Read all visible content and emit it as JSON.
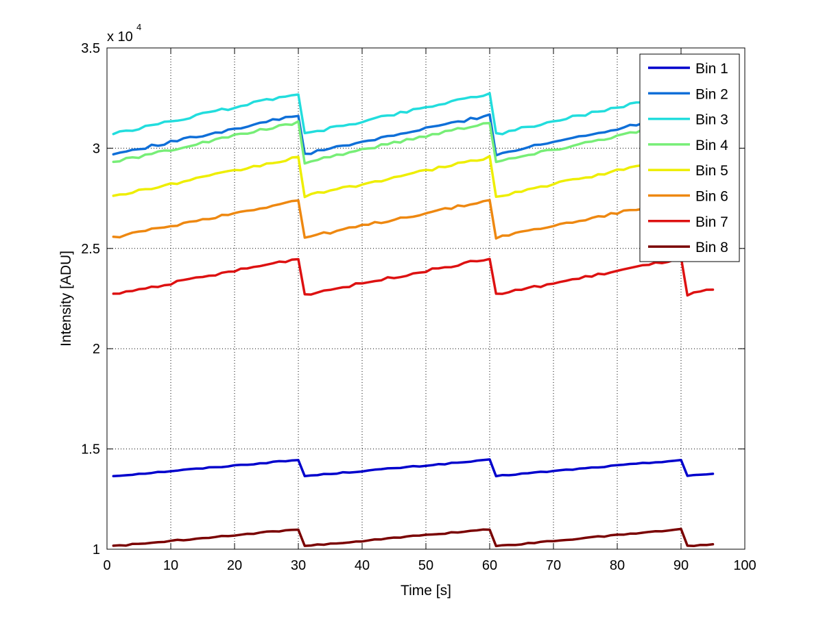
{
  "chart_data": {
    "type": "line",
    "title": "",
    "xlabel": "Time [s]",
    "ylabel": "Intensity [ADU]",
    "xlim": [
      0,
      100
    ],
    "ylim": [
      10000,
      35000
    ],
    "xticks": [
      0,
      10,
      20,
      30,
      40,
      50,
      60,
      70,
      80,
      90,
      100
    ],
    "yticks": [
      10000,
      15000,
      20000,
      25000,
      30000,
      35000
    ],
    "ytick_labels": [
      "1",
      "1.5",
      "2",
      "2.5",
      "3",
      "3.5"
    ],
    "y_multiplier": {
      "base": "x 10",
      "exponent": "4"
    },
    "grid": true,
    "legend_position": "top-right",
    "series": [
      {
        "name": "Bin 1",
        "color": "#0000CC",
        "start": 13650,
        "end": 14450,
        "points": 95,
        "mid": [
          13850,
          13800,
          13880,
          13850,
          13900,
          13780,
          13950,
          13820,
          13850,
          13860
        ]
      },
      {
        "name": "Bin 2",
        "color": "#0F6FD8",
        "start": 29700,
        "end": 31650,
        "points": 95,
        "mid": [
          30050,
          30100,
          30150,
          30200,
          30120,
          30250,
          30180,
          30300,
          30250,
          30350
        ]
      },
      {
        "name": "Bin 3",
        "color": "#22DDDD",
        "start": 30700,
        "end": 32750,
        "points": 95,
        "mid": [
          31050,
          31150,
          31200,
          31250,
          31150,
          31300,
          31250,
          31380,
          31300,
          31400
        ]
      },
      {
        "name": "Bin 4",
        "color": "#77EE77",
        "start": 29300,
        "end": 31300,
        "points": 95,
        "mid": [
          29700,
          29750,
          29800,
          29850,
          29780,
          29900,
          29850,
          29950,
          29900,
          30000
        ]
      },
      {
        "name": "Bin 5",
        "color": "#EEEE00",
        "start": 27600,
        "end": 29550,
        "points": 95,
        "mid": [
          27950,
          28000,
          28050,
          28100,
          28050,
          28150,
          28100,
          28200,
          28150,
          28250
        ]
      },
      {
        "name": "Bin 6",
        "color": "#EE8811",
        "start": 25550,
        "end": 27400,
        "points": 95,
        "mid": [
          25800,
          25850,
          25900,
          25950,
          25900,
          26000,
          25950,
          26050,
          26000,
          26100
        ]
      },
      {
        "name": "Bin 7",
        "color": "#DD1111",
        "start": 22700,
        "end": 24500,
        "points": 95,
        "mid": [
          22900,
          22950,
          23000,
          23050,
          23000,
          23100,
          23050,
          23150,
          23100,
          23200
        ]
      },
      {
        "name": "Bin 8",
        "color": "#7A0000",
        "start": 10150,
        "end": 11000,
        "points": 95,
        "mid": [
          10250,
          10280,
          10300,
          10320,
          10280,
          10350,
          10320,
          10380,
          10350,
          10400
        ]
      }
    ],
    "period_s": 30,
    "note": "Each series repeats a sawtooth: values rise from 'start' to 'end' over each 30 s period, then drop back to 'start' after t=30, 60, 90."
  }
}
